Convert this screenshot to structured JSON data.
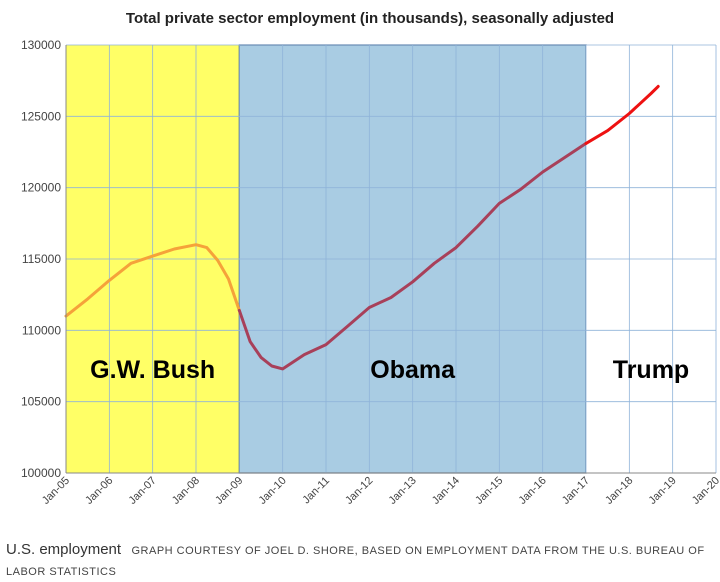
{
  "chart_data": {
    "type": "line",
    "title": "Total private sector employment (in thousands), seasonally adjusted",
    "xlabel": "",
    "ylabel": "",
    "ylim": [
      100000,
      130000
    ],
    "yticks": [
      100000,
      105000,
      110000,
      115000,
      120000,
      125000,
      130000
    ],
    "ytick_labels": [
      "100000",
      "105000",
      "110000",
      "115000",
      "120000",
      "125000",
      "130000"
    ],
    "xlim": [
      "2005-01",
      "2020-01"
    ],
    "xtick_labels": [
      "Jan-05",
      "Jan-06",
      "Jan-07",
      "Jan-08",
      "Jan-09",
      "Jan-10",
      "Jan-11",
      "Jan-12",
      "Jan-13",
      "Jan-14",
      "Jan-15",
      "Jan-16",
      "Jan-17",
      "Jan-18",
      "Jan-19",
      "Jan-20"
    ],
    "grid": true,
    "regions": [
      {
        "label": "G.W. Bush",
        "start": "2005-01",
        "end": "2009-01",
        "color": "#ffff66"
      },
      {
        "label": "Obama",
        "start": "2009-01",
        "end": "2017-01",
        "color": "#a9cce3"
      },
      {
        "label": "Trump",
        "start": "2017-01",
        "end": "2020-01",
        "color": "#ffffff"
      }
    ],
    "series": [
      {
        "color": "#f5a23a",
        "x": [
          "2005-01",
          "2005-07",
          "2006-01",
          "2006-07",
          "2007-01",
          "2007-07",
          "2008-01",
          "2008-04",
          "2008-07",
          "2008-10",
          "2009-01"
        ],
        "y": [
          111000,
          112200,
          113500,
          114700,
          115200,
          115700,
          116000,
          115800,
          114900,
          113600,
          111400
        ]
      },
      {
        "color": "#a8405a",
        "x": [
          "2009-01",
          "2009-04",
          "2009-07",
          "2009-10",
          "2010-01",
          "2010-04",
          "2010-07",
          "2011-01",
          "2011-07",
          "2012-01",
          "2012-07",
          "2013-01",
          "2013-07",
          "2014-01",
          "2014-07",
          "2015-01",
          "2015-07",
          "2016-01",
          "2016-07",
          "2017-01"
        ],
        "y": [
          111400,
          109200,
          108100,
          107500,
          107300,
          107800,
          108300,
          109000,
          110300,
          111600,
          112300,
          113400,
          114700,
          115800,
          117300,
          118900,
          119900,
          121100,
          122100,
          123100
        ]
      },
      {
        "color": "#ee1111",
        "x": [
          "2017-01",
          "2017-07",
          "2018-01",
          "2018-07",
          "2018-09"
        ],
        "y": [
          123100,
          124000,
          125200,
          126600,
          127100
        ]
      }
    ]
  },
  "caption": {
    "title": "U.S. employment",
    "credit": "GRAPH COURTESY OF JOEL D. SHORE, BASED ON EMPLOYMENT DATA FROM THE U.S. BUREAU OF LABOR STATISTICS"
  }
}
